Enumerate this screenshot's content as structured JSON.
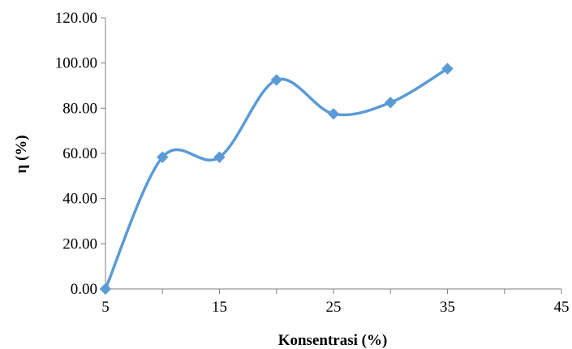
{
  "chart_data": {
    "type": "line",
    "title": "",
    "xlabel": "Konsentrasi (%)",
    "ylabel": "η (%)",
    "xlim": [
      5,
      45
    ],
    "ylim": [
      0,
      120
    ],
    "x_ticks": [
      5,
      15,
      25,
      35,
      45
    ],
    "y_ticks": [
      0,
      20,
      40,
      60,
      80,
      100,
      120
    ],
    "x_tick_labels": [
      "5",
      "15",
      "25",
      "35",
      "45"
    ],
    "y_tick_labels": [
      "0.00",
      "20.00",
      "40.00",
      "60.00",
      "80.00",
      "100.00",
      "120.00"
    ],
    "grid": false,
    "smooth": true,
    "marker": "diamond",
    "series": [
      {
        "color": "#5B9BD5",
        "x": [
          5,
          10,
          15,
          20,
          25,
          30,
          35
        ],
        "y": [
          0.0,
          58.33,
          58.33,
          92.5,
          77.5,
          82.5,
          97.5
        ]
      }
    ]
  }
}
